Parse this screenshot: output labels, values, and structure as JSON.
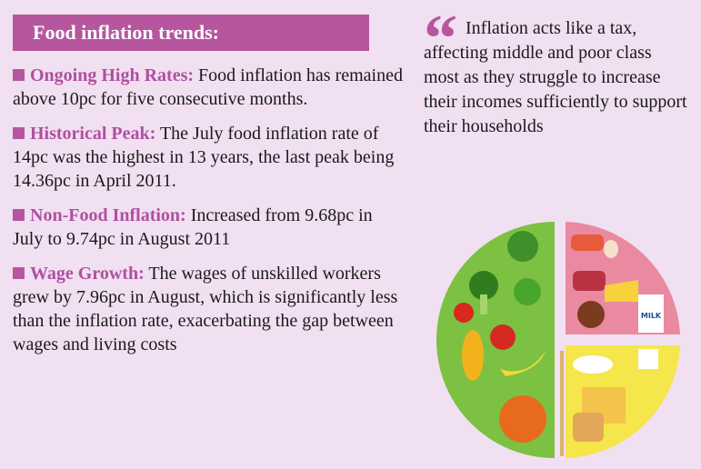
{
  "header": {
    "title": "Food inflation trends:"
  },
  "items": [
    {
      "label": "Ongoing High Rates:",
      "text": "Food inflation has remained above 10pc for five consecutive months."
    },
    {
      "label": "Historical Peak:",
      "text": "The July food inflation rate of 14pc was the highest in 13 years, the last peak being 14.36pc in April 2011."
    },
    {
      "label": "Non-Food Inflation:",
      "text": "Increased from 9.68pc in July to 9.74pc in August 2011"
    },
    {
      "label": "Wage Growth:",
      "text": "The wages of unskilled workers grew by 7.96pc in August, which is significantly less than the inflation rate, exacerbating the gap between wages and living costs"
    }
  ],
  "quote": {
    "text": "Inflation acts like a tax, affecting middle and poor class most as they struggle to increase their incomes sufficiently to support their households"
  },
  "illustration": {
    "milk_label": "MILK"
  }
}
